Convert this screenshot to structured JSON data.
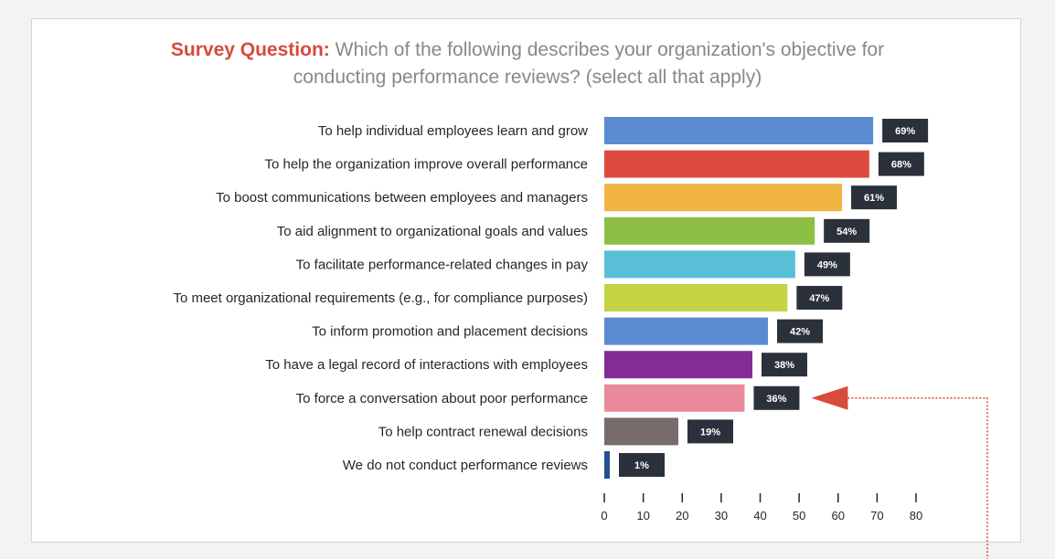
{
  "title": {
    "label": "Survey Question:",
    "line1": "Which of the following describes your organization's objective for",
    "line2": "conducting performance reviews? (select all that apply)"
  },
  "chart_data": {
    "type": "bar",
    "orientation": "horizontal",
    "categories": [
      "To help individual employees learn and grow",
      "To help the organization improve overall performance",
      "To boost communications between employees and managers",
      "To aid alignment to organizational goals and values",
      "To facilitate performance-related changes in pay",
      "To meet organizational requirements (e.g., for compliance purposes)",
      "To inform promotion and placement decisions",
      "To have a legal record of interactions with employees",
      "To force a conversation about poor performance",
      "To help contract renewal decisions",
      "We do not conduct performance reviews"
    ],
    "values": [
      69,
      68,
      61,
      54,
      49,
      47,
      42,
      38,
      36,
      19,
      1
    ],
    "value_labels": [
      "69%",
      "68%",
      "61%",
      "54%",
      "49%",
      "47%",
      "42%",
      "38%",
      "36%",
      "19%",
      "1%"
    ],
    "colors": [
      "#5b8bd1",
      "#dc4b3e",
      "#f2b441",
      "#8dbf45",
      "#58bfd7",
      "#c3d344",
      "#5b8bd1",
      "#852b96",
      "#e98b9a",
      "#776b6b",
      "#23508e"
    ],
    "label_box_color": "#2b313b",
    "xlim": [
      0,
      80
    ],
    "xticks": [
      "0",
      "10",
      "20",
      "30",
      "40",
      "50",
      "60",
      "70",
      "80"
    ],
    "highlight_index": 8,
    "highlight_color": "#d64b3c",
    "grid": false,
    "legend": "none"
  }
}
